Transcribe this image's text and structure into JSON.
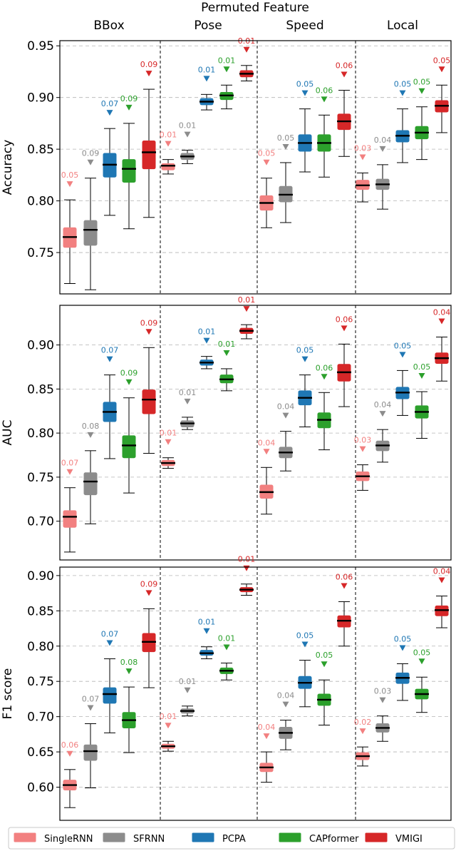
{
  "figure": {
    "title": "Permuted Feature",
    "group_labels": [
      "BBox",
      "Pose",
      "Speed",
      "Local"
    ]
  },
  "legend": {
    "placement": "bottom",
    "items": [
      {
        "label": "SingleRNN",
        "color": "#f28080"
      },
      {
        "label": "SFRNN",
        "color": "#8c8c8c"
      },
      {
        "label": "PCPA",
        "color": "#1f77b4"
      },
      {
        "label": "CAPformer",
        "color": "#2ca02c"
      },
      {
        "label": "VMIGI",
        "color": "#d62728"
      }
    ]
  },
  "chart_data": [
    {
      "type": "box",
      "ylabel": "Accuracy",
      "ylim": [
        0.71,
        0.955
      ],
      "yticks": [
        "0.75",
        "0.80",
        "0.85",
        "0.90",
        "0.95"
      ],
      "grid": true,
      "groups": [
        {
          "name": "BBox",
          "boxes": [
            {
              "model": "SingleRNN",
              "min": 0.72,
              "q1": 0.755,
              "median": 0.765,
              "q3": 0.774,
              "max": 0.801,
              "label": "0.05"
            },
            {
              "model": "SFRNN",
              "min": 0.714,
              "q1": 0.757,
              "median": 0.772,
              "q3": 0.781,
              "max": 0.822,
              "label": "0.09"
            },
            {
              "model": "PCPA",
              "min": 0.786,
              "q1": 0.823,
              "median": 0.835,
              "q3": 0.846,
              "max": 0.87,
              "label": "0.07"
            },
            {
              "model": "CAPformer",
              "min": 0.773,
              "q1": 0.818,
              "median": 0.831,
              "q3": 0.84,
              "max": 0.875,
              "label": "0.09"
            },
            {
              "model": "VMIGI",
              "min": 0.784,
              "q1": 0.831,
              "median": 0.847,
              "q3": 0.858,
              "max": 0.908,
              "label": "0.09"
            }
          ]
        },
        {
          "name": "Pose",
          "boxes": [
            {
              "model": "SingleRNN",
              "min": 0.826,
              "q1": 0.83,
              "median": 0.834,
              "q3": 0.836,
              "max": 0.84,
              "label": "0.01"
            },
            {
              "model": "SFRNN",
              "min": 0.836,
              "q1": 0.84,
              "median": 0.843,
              "q3": 0.846,
              "max": 0.849,
              "label": "0.01"
            },
            {
              "model": "PCPA",
              "min": 0.888,
              "q1": 0.893,
              "median": 0.896,
              "q3": 0.899,
              "max": 0.903,
              "label": "0.01"
            },
            {
              "model": "CAPformer",
              "min": 0.889,
              "q1": 0.898,
              "median": 0.902,
              "q3": 0.905,
              "max": 0.912,
              "label": "0.01"
            },
            {
              "model": "VMIGI",
              "min": 0.916,
              "q1": 0.92,
              "median": 0.923,
              "q3": 0.926,
              "max": 0.931,
              "label": "0.01"
            }
          ]
        },
        {
          "name": "Speed",
          "boxes": [
            {
              "model": "SingleRNN",
              "min": 0.774,
              "q1": 0.791,
              "median": 0.798,
              "q3": 0.805,
              "max": 0.822,
              "label": "0.05"
            },
            {
              "model": "SFRNN",
              "min": 0.779,
              "q1": 0.799,
              "median": 0.806,
              "q3": 0.814,
              "max": 0.837,
              "label": "0.05"
            },
            {
              "model": "PCPA",
              "min": 0.828,
              "q1": 0.848,
              "median": 0.856,
              "q3": 0.864,
              "max": 0.889,
              "label": "0.05"
            },
            {
              "model": "CAPformer",
              "min": 0.823,
              "q1": 0.848,
              "median": 0.856,
              "q3": 0.864,
              "max": 0.883,
              "label": "0.06"
            },
            {
              "model": "VMIGI",
              "min": 0.843,
              "q1": 0.869,
              "median": 0.877,
              "q3": 0.884,
              "max": 0.907,
              "label": "0.06"
            }
          ]
        },
        {
          "name": "Local",
          "boxes": [
            {
              "model": "SingleRNN",
              "min": 0.799,
              "q1": 0.811,
              "median": 0.815,
              "q3": 0.82,
              "max": 0.827,
              "label": "0.03"
            },
            {
              "model": "SFRNN",
              "min": 0.792,
              "q1": 0.811,
              "median": 0.816,
              "q3": 0.821,
              "max": 0.835,
              "label": "0.04"
            },
            {
              "model": "PCPA",
              "min": 0.837,
              "q1": 0.857,
              "median": 0.863,
              "q3": 0.868,
              "max": 0.889,
              "label": "0.05"
            },
            {
              "model": "CAPformer",
              "min": 0.84,
              "q1": 0.86,
              "median": 0.866,
              "q3": 0.872,
              "max": 0.891,
              "label": "0.05"
            },
            {
              "model": "VMIGI",
              "min": 0.866,
              "q1": 0.886,
              "median": 0.892,
              "q3": 0.897,
              "max": 0.912,
              "label": "0.05"
            }
          ]
        }
      ]
    },
    {
      "type": "box",
      "ylabel": "AUC",
      "ylim": [
        0.656,
        0.945
      ],
      "yticks": [
        "0.70",
        "0.75",
        "0.80",
        "0.85",
        "0.90"
      ],
      "grid": true,
      "groups": [
        {
          "name": "BBox",
          "boxes": [
            {
              "model": "SingleRNN",
              "min": 0.665,
              "q1": 0.693,
              "median": 0.705,
              "q3": 0.712,
              "max": 0.738,
              "label": "0.07"
            },
            {
              "model": "SFRNN",
              "min": 0.697,
              "q1": 0.73,
              "median": 0.745,
              "q3": 0.755,
              "max": 0.78,
              "label": "0.08"
            },
            {
              "model": "PCPA",
              "min": 0.771,
              "q1": 0.813,
              "median": 0.824,
              "q3": 0.835,
              "max": 0.866,
              "label": "0.07"
            },
            {
              "model": "CAPformer",
              "min": 0.732,
              "q1": 0.772,
              "median": 0.786,
              "q3": 0.797,
              "max": 0.84,
              "label": "0.09"
            },
            {
              "model": "VMIGI",
              "min": 0.777,
              "q1": 0.822,
              "median": 0.838,
              "q3": 0.849,
              "max": 0.897,
              "label": "0.09"
            }
          ]
        },
        {
          "name": "Pose",
          "boxes": [
            {
              "model": "SingleRNN",
              "min": 0.76,
              "q1": 0.763,
              "median": 0.766,
              "q3": 0.769,
              "max": 0.772,
              "label": "0.01"
            },
            {
              "model": "SFRNN",
              "min": 0.804,
              "q1": 0.807,
              "median": 0.811,
              "q3": 0.814,
              "max": 0.818,
              "label": "0.01"
            },
            {
              "model": "PCPA",
              "min": 0.873,
              "q1": 0.877,
              "median": 0.88,
              "q3": 0.883,
              "max": 0.887,
              "label": "0.01"
            },
            {
              "model": "CAPformer",
              "min": 0.848,
              "q1": 0.857,
              "median": 0.861,
              "q3": 0.866,
              "max": 0.873,
              "label": "0.01"
            },
            {
              "model": "VMIGI",
              "min": 0.907,
              "q1": 0.913,
              "median": 0.916,
              "q3": 0.919,
              "max": 0.923,
              "label": "0.01"
            }
          ]
        },
        {
          "name": "Speed",
          "boxes": [
            {
              "model": "SingleRNN",
              "min": 0.708,
              "q1": 0.726,
              "median": 0.733,
              "q3": 0.741,
              "max": 0.761,
              "label": "0.04"
            },
            {
              "model": "SFRNN",
              "min": 0.757,
              "q1": 0.772,
              "median": 0.778,
              "q3": 0.784,
              "max": 0.802,
              "label": "0.04"
            },
            {
              "model": "PCPA",
              "min": 0.807,
              "q1": 0.832,
              "median": 0.84,
              "q3": 0.848,
              "max": 0.866,
              "label": "0.05"
            },
            {
              "model": "CAPformer",
              "min": 0.781,
              "q1": 0.806,
              "median": 0.815,
              "q3": 0.823,
              "max": 0.846,
              "label": "0.06"
            },
            {
              "model": "VMIGI",
              "min": 0.83,
              "q1": 0.859,
              "median": 0.869,
              "q3": 0.878,
              "max": 0.901,
              "label": "0.06"
            }
          ]
        },
        {
          "name": "Local",
          "boxes": [
            {
              "model": "SingleRNN",
              "min": 0.735,
              "q1": 0.746,
              "median": 0.751,
              "q3": 0.756,
              "max": 0.764,
              "label": "0.03"
            },
            {
              "model": "SFRNN",
              "min": 0.767,
              "q1": 0.78,
              "median": 0.786,
              "q3": 0.791,
              "max": 0.804,
              "label": "0.04"
            },
            {
              "model": "PCPA",
              "min": 0.82,
              "q1": 0.839,
              "median": 0.846,
              "q3": 0.852,
              "max": 0.871,
              "label": "0.05"
            },
            {
              "model": "CAPformer",
              "min": 0.794,
              "q1": 0.817,
              "median": 0.824,
              "q3": 0.831,
              "max": 0.847,
              "label": "0.05"
            },
            {
              "model": "VMIGI",
              "min": 0.859,
              "q1": 0.879,
              "median": 0.885,
              "q3": 0.891,
              "max": 0.909,
              "label": "0.04"
            }
          ]
        }
      ]
    },
    {
      "type": "box",
      "ylabel": "F1 score",
      "ylim": [
        0.553,
        0.912
      ],
      "yticks": [
        "0.60",
        "0.65",
        "0.70",
        "0.75",
        "0.80",
        "0.85",
        "0.90"
      ],
      "grid": true,
      "groups": [
        {
          "name": "BBox",
          "boxes": [
            {
              "model": "SingleRNN",
              "min": 0.571,
              "q1": 0.596,
              "median": 0.603,
              "q3": 0.61,
              "max": 0.625,
              "label": "0.06"
            },
            {
              "model": "SFRNN",
              "min": 0.599,
              "q1": 0.638,
              "median": 0.651,
              "q3": 0.66,
              "max": 0.69,
              "label": "0.07"
            },
            {
              "model": "PCPA",
              "min": 0.677,
              "q1": 0.719,
              "median": 0.732,
              "q3": 0.741,
              "max": 0.782,
              "label": "0.07"
            },
            {
              "model": "CAPformer",
              "min": 0.649,
              "q1": 0.684,
              "median": 0.695,
              "q3": 0.706,
              "max": 0.742,
              "label": "0.08"
            },
            {
              "model": "VMIGI",
              "min": 0.741,
              "q1": 0.792,
              "median": 0.806,
              "q3": 0.818,
              "max": 0.853,
              "label": "0.09"
            }
          ]
        },
        {
          "name": "Pose",
          "boxes": [
            {
              "model": "SingleRNN",
              "min": 0.651,
              "q1": 0.655,
              "median": 0.658,
              "q3": 0.661,
              "max": 0.665,
              "label": "0.01"
            },
            {
              "model": "SFRNN",
              "min": 0.701,
              "q1": 0.705,
              "median": 0.708,
              "q3": 0.711,
              "max": 0.715,
              "label": "0.01"
            },
            {
              "model": "PCPA",
              "min": 0.782,
              "q1": 0.787,
              "median": 0.79,
              "q3": 0.794,
              "max": 0.799,
              "label": "0.01"
            },
            {
              "model": "CAPformer",
              "min": 0.752,
              "q1": 0.761,
              "median": 0.765,
              "q3": 0.769,
              "max": 0.776,
              "label": "0.01"
            },
            {
              "model": "VMIGI",
              "min": 0.872,
              "q1": 0.877,
              "median": 0.88,
              "q3": 0.883,
              "max": 0.888,
              "label": "0.01"
            }
          ]
        },
        {
          "name": "Speed",
          "boxes": [
            {
              "model": "SingleRNN",
              "min": 0.607,
              "q1": 0.622,
              "median": 0.628,
              "q3": 0.634,
              "max": 0.65,
              "label": "0.04"
            },
            {
              "model": "SFRNN",
              "min": 0.653,
              "q1": 0.669,
              "median": 0.677,
              "q3": 0.685,
              "max": 0.695,
              "label": "0.04"
            },
            {
              "model": "PCPA",
              "min": 0.714,
              "q1": 0.74,
              "median": 0.748,
              "q3": 0.757,
              "max": 0.78,
              "label": "0.05"
            },
            {
              "model": "CAPformer",
              "min": 0.688,
              "q1": 0.716,
              "median": 0.724,
              "q3": 0.732,
              "max": 0.752,
              "label": "0.05"
            },
            {
              "model": "VMIGI",
              "min": 0.8,
              "q1": 0.827,
              "median": 0.836,
              "q3": 0.843,
              "max": 0.863,
              "label": "0.06"
            }
          ]
        },
        {
          "name": "Local",
          "boxes": [
            {
              "model": "SingleRNN",
              "min": 0.63,
              "q1": 0.639,
              "median": 0.644,
              "q3": 0.649,
              "max": 0.657,
              "label": "0.02"
            },
            {
              "model": "SFRNN",
              "min": 0.665,
              "q1": 0.678,
              "median": 0.684,
              "q3": 0.69,
              "max": 0.701,
              "label": "0.03"
            },
            {
              "model": "PCPA",
              "min": 0.723,
              "q1": 0.747,
              "median": 0.755,
              "q3": 0.762,
              "max": 0.775,
              "label": "0.05"
            },
            {
              "model": "CAPformer",
              "min": 0.706,
              "q1": 0.725,
              "median": 0.732,
              "q3": 0.739,
              "max": 0.756,
              "label": "0.05"
            },
            {
              "model": "VMIGI",
              "min": 0.826,
              "q1": 0.843,
              "median": 0.851,
              "q3": 0.857,
              "max": 0.871,
              "label": "0.04"
            }
          ]
        }
      ]
    }
  ]
}
